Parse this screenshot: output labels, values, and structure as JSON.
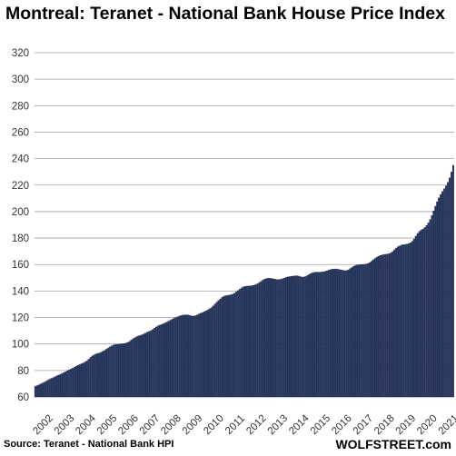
{
  "chart_data": {
    "type": "bar",
    "title": "Montreal: Teranet - National Bank House Price Index",
    "source": "Source: Teranet - National Bank HPI",
    "brand": "WOLFSTREET.com",
    "xlabel": "",
    "ylabel": "",
    "ylim": [
      60,
      320
    ],
    "yticks": [
      60,
      80,
      100,
      120,
      140,
      160,
      180,
      200,
      220,
      240,
      260,
      280,
      300,
      320
    ],
    "grid": true,
    "bar_color": "#24345e",
    "year_labels": [
      "2002",
      "2003",
      "2004",
      "2005",
      "2006",
      "2007",
      "2008",
      "2009",
      "2010",
      "2011",
      "2012",
      "2013",
      "2014",
      "2015",
      "2016",
      "2017",
      "2018",
      "2019",
      "2020",
      "2021"
    ],
    "x_start": "2002-01",
    "values": [
      68.0,
      68.6,
      69.1,
      69.8,
      70.4,
      71.1,
      71.9,
      72.7,
      73.4,
      74.1,
      74.6,
      75.2,
      75.9,
      76.5,
      77.0,
      77.6,
      78.3,
      79.0,
      79.8,
      80.5,
      81.1,
      81.8,
      82.6,
      83.3,
      84.0,
      84.5,
      85.1,
      85.7,
      86.4,
      87.3,
      88.5,
      89.9,
      91.0,
      91.8,
      92.4,
      92.9,
      93.2,
      93.8,
      94.5,
      95.2,
      96.1,
      97.0,
      97.9,
      98.7,
      99.3,
      99.6,
      99.8,
      99.9,
      100.1,
      100.2,
      100.4,
      100.7,
      101.2,
      102.0,
      103.0,
      104.0,
      104.9,
      105.6,
      106.1,
      106.5,
      107.0,
      107.6,
      108.3,
      109.0,
      109.5,
      110.1,
      111.0,
      112.0,
      112.9,
      113.7,
      114.3,
      114.8,
      115.3,
      115.9,
      116.6,
      117.3,
      118.0,
      118.7,
      119.4,
      120.0,
      120.6,
      121.1,
      121.5,
      121.8,
      122.0,
      122.1,
      121.9,
      121.5,
      121.2,
      121.1,
      121.4,
      122.0,
      122.7,
      123.3,
      123.8,
      124.4,
      125.0,
      125.8,
      126.6,
      127.5,
      128.7,
      130.2,
      131.6,
      132.9,
      134.1,
      135.2,
      136.0,
      136.5,
      136.7,
      136.9,
      137.2,
      137.6,
      138.4,
      139.4,
      140.5,
      141.5,
      142.4,
      143.1,
      143.5,
      143.7,
      143.8,
      143.9,
      144.1,
      144.4,
      144.9,
      145.6,
      146.5,
      147.4,
      148.3,
      149.0,
      149.5,
      149.7,
      149.7,
      149.5,
      149.2,
      148.9,
      148.7,
      148.7,
      148.9,
      149.3,
      149.8,
      150.3,
      150.7,
      150.9,
      151.1,
      151.3,
      151.5,
      151.6,
      151.3,
      150.9,
      150.6,
      150.6,
      151.0,
      151.8,
      152.6,
      153.3,
      153.8,
      154.1,
      154.3,
      154.3,
      154.3,
      154.4,
      154.6,
      154.9,
      155.3,
      155.8,
      156.2,
      156.5,
      156.7,
      156.7,
      156.5,
      156.3,
      156.0,
      155.7,
      155.4,
      155.5,
      156.0,
      156.9,
      157.8,
      158.6,
      159.2,
      159.6,
      159.8,
      160.0,
      160.1,
      160.2,
      160.4,
      160.8,
      161.5,
      162.5,
      163.6,
      164.6,
      165.5,
      166.3,
      166.9,
      167.3,
      167.6,
      167.8,
      168.0,
      168.3,
      168.9,
      169.9,
      171.2,
      172.5,
      173.5,
      174.2,
      174.7,
      175.0,
      175.2,
      175.5,
      175.9,
      176.5,
      177.6,
      179.3,
      181.5,
      183.5,
      185.0,
      186.0,
      186.9,
      188.0,
      189.5,
      191.5,
      194.0,
      197.0,
      200.5,
      204.0,
      207.5,
      210.5,
      213.0,
      215.2,
      217.3,
      219.5,
      222.0,
      225.5,
      230.0,
      235.0
    ]
  }
}
